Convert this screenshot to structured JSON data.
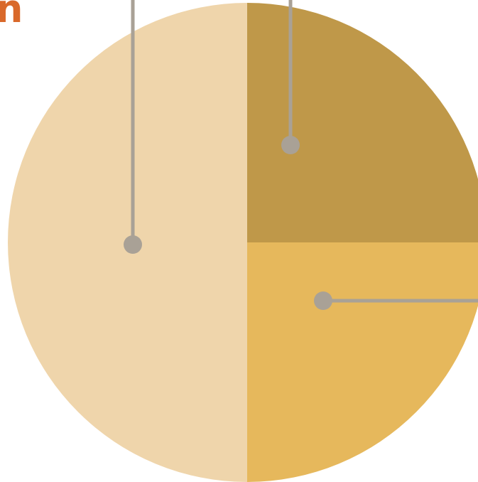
{
  "title_fragment": "n",
  "colors": {
    "title": "#d9692b",
    "leader_line": "#a9a196",
    "background": "#ffffff"
  },
  "chart_data": {
    "type": "pie",
    "title": "",
    "legend": "none",
    "start_angle_deg": 0,
    "direction": "clockwise",
    "slices": [
      {
        "value": 25,
        "color": "#bf9849"
      },
      {
        "value": 25,
        "color": "#e6b85c"
      },
      {
        "value": 50,
        "color": "#efd5ab"
      }
    ]
  }
}
